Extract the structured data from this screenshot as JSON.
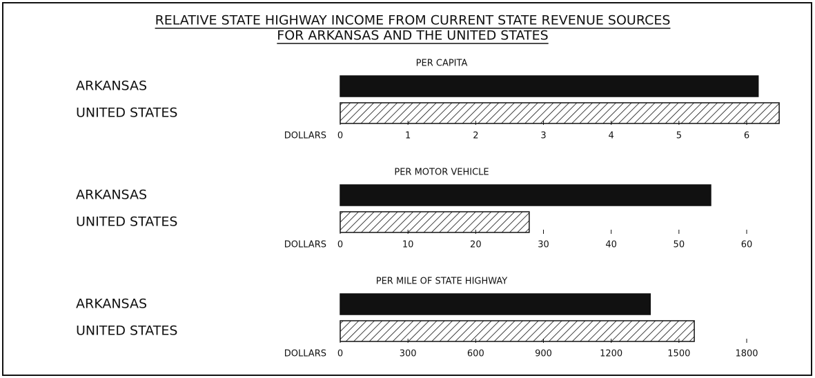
{
  "title_lines": [
    "RELATIVE STATE HIGHWAY INCOME FROM CURRENT STATE REVENUE SOURCES",
    "FOR ARKANSAS AND THE UNITED STATES"
  ],
  "chart_data": [
    {
      "type": "hbar",
      "title": "PER CAPITA",
      "xlabel": "DOLLARS",
      "categories": [
        "ARKANSAS",
        "UNITED STATES"
      ],
      "values": [
        6.17,
        6.48
      ],
      "color": "#111111",
      "patterns": [
        "solid",
        "hatch"
      ],
      "xlim": [
        0,
        6
      ],
      "xticks": [
        0,
        1,
        2,
        3,
        4,
        5,
        6
      ]
    },
    {
      "type": "hbar",
      "title": "PER MOTOR VEHICLE",
      "xlabel": "DOLLARS",
      "categories": [
        "ARKANSAS",
        "UNITED STATES"
      ],
      "values": [
        54.7,
        27.9
      ],
      "color": "#111111",
      "patterns": [
        "solid",
        "hatch"
      ],
      "xlim": [
        0,
        60
      ],
      "xticks": [
        0,
        10,
        20,
        30,
        40,
        50,
        60
      ]
    },
    {
      "type": "hbar",
      "title": "PER MILE OF STATE HIGHWAY",
      "xlabel": "DOLLARS",
      "categories": [
        "ARKANSAS",
        "UNITED STATES"
      ],
      "values": [
        1373,
        1568
      ],
      "color": "#111111",
      "patterns": [
        "solid",
        "hatch"
      ],
      "xlim": [
        0,
        1800
      ],
      "xticks": [
        0,
        300,
        600,
        900,
        1200,
        1500,
        1800
      ]
    }
  ]
}
